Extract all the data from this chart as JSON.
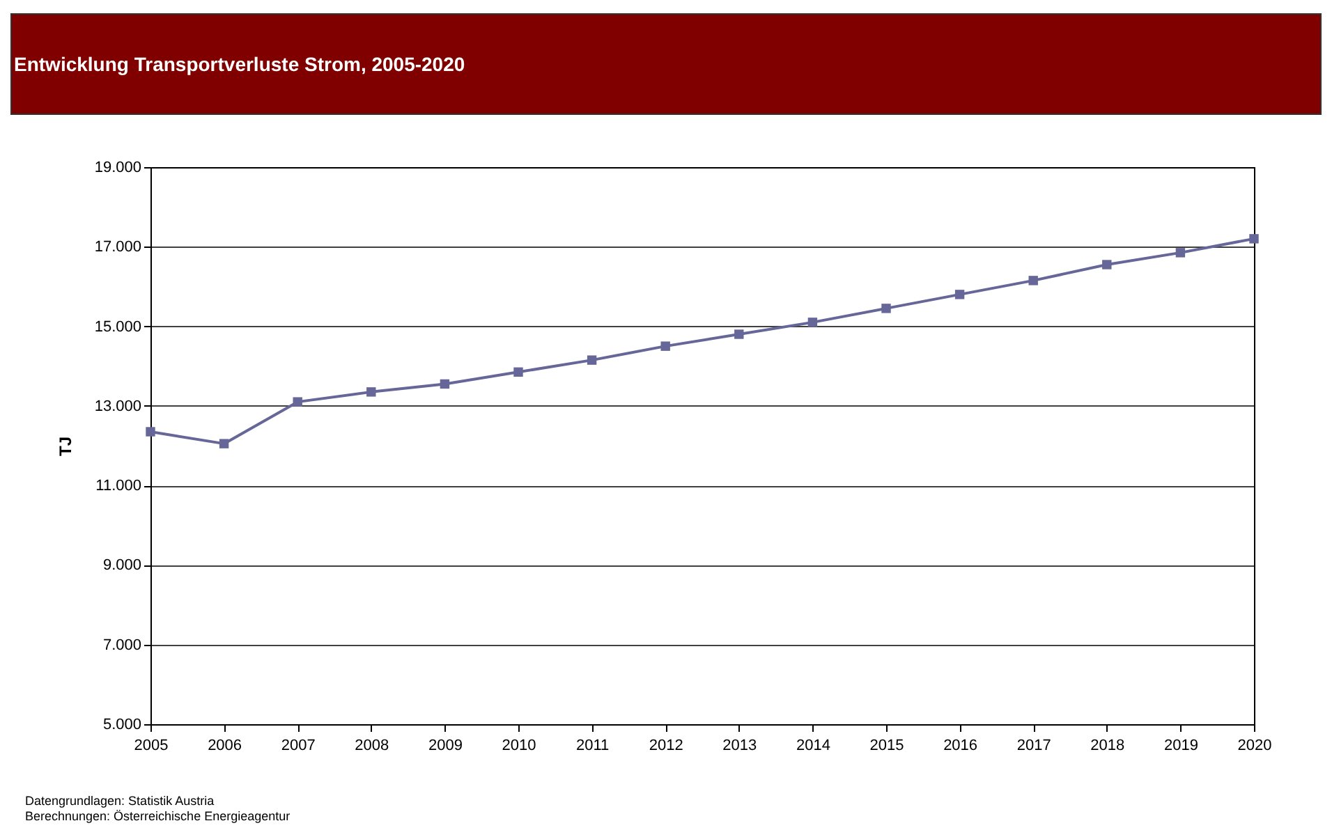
{
  "chart_data": {
    "type": "line",
    "title": "Entwicklung Transportverluste Strom, 2005-2020",
    "ylabel": "TJ",
    "categories": [
      "2005",
      "2006",
      "2007",
      "2008",
      "2009",
      "2010",
      "2011",
      "2012",
      "2013",
      "2014",
      "2015",
      "2016",
      "2017",
      "2018",
      "2019",
      "2020"
    ],
    "series": [
      {
        "color": "#666699",
        "values": [
          12350,
          12050,
          13100,
          13350,
          13550,
          13850,
          14150,
          14500,
          14800,
          15100,
          15450,
          15800,
          16150,
          16550,
          16850,
          17200
        ]
      }
    ],
    "ylim": [
      5000,
      19000
    ],
    "yticks": [
      {
        "value": 5000,
        "label": "5.000"
      },
      {
        "value": 7000,
        "label": "7.000"
      },
      {
        "value": 9000,
        "label": "9.000"
      },
      {
        "value": 11000,
        "label": "11.000"
      },
      {
        "value": 13000,
        "label": "13.000"
      },
      {
        "value": 15000,
        "label": "15.000"
      },
      {
        "value": 17000,
        "label": "17.000"
      },
      {
        "value": 19000,
        "label": "19.000"
      }
    ],
    "grid": "y",
    "marker": "square",
    "line_style": "solid",
    "annotations": [
      "Datengrundlagen: Statistik Austria",
      "Berechnungen: Österreichische Energieagentur"
    ]
  }
}
